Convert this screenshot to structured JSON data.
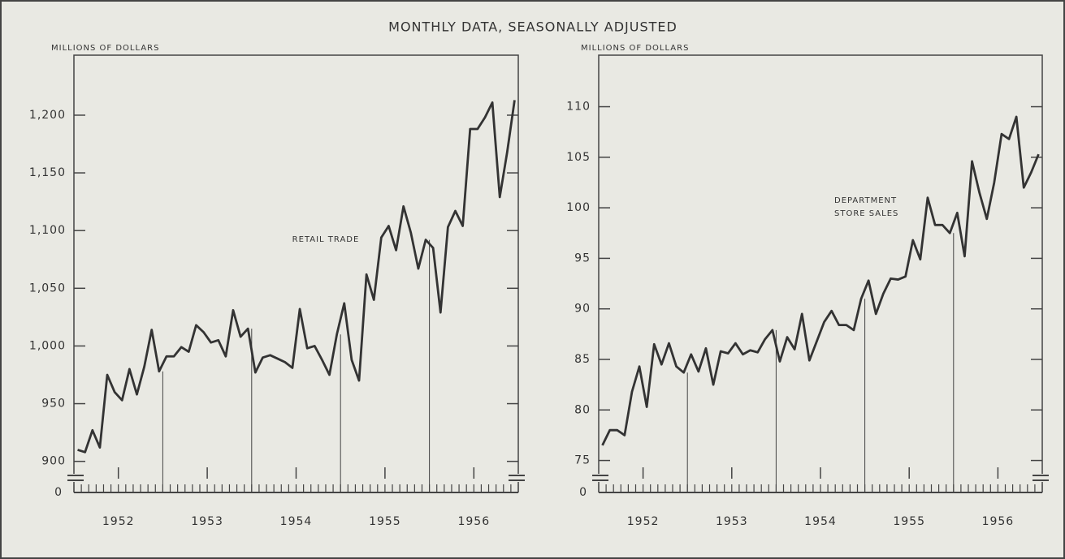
{
  "title": "MONTHLY DATA, SEASONALLY ADJUSTED",
  "chart_data": [
    {
      "type": "line",
      "ylabel": "MILLIONS OF DOLLARS",
      "annotation": [
        "RETAIL TRADE"
      ],
      "years": [
        "1952",
        "1953",
        "1954",
        "1955",
        "1956"
      ],
      "color": "#333333",
      "values": [
        910,
        908,
        927,
        912,
        975,
        960,
        953,
        980,
        958,
        982,
        1014,
        978,
        991,
        991,
        999,
        995,
        1018,
        1012,
        1003,
        1005,
        991,
        1031,
        1008,
        1015,
        977,
        990,
        992,
        989,
        986,
        981,
        1032,
        998,
        1000,
        988,
        975,
        1010,
        1037,
        988,
        970,
        1062,
        1040,
        1094,
        1104,
        1083,
        1121,
        1098,
        1067,
        1092,
        1085,
        1029,
        1103,
        1117,
        1104,
        1188,
        1188,
        1198,
        1211,
        1129,
        1168,
        1213
      ],
      "ylim": [
        885,
        1252
      ],
      "yticks": [
        900,
        950,
        {
          "value": 1000,
          "label": "1,000"
        },
        {
          "value": 1050,
          "label": "1,050"
        },
        {
          "value": 1100,
          "label": "1,100"
        },
        {
          "value": 1150,
          "label": "1,150"
        },
        {
          "value": 1200,
          "label": "1,200"
        }
      ],
      "break_tick": 0
    },
    {
      "type": "line",
      "ylabel": "MILLIONS OF DOLLARS",
      "annotation": [
        "DEPARTMENT",
        "STORE SALES"
      ],
      "years": [
        "1952",
        "1953",
        "1954",
        "1955",
        "1956"
      ],
      "color": "#333333",
      "values": [
        76.5,
        78,
        78,
        77.5,
        81.8,
        84.3,
        80.3,
        86.5,
        84.5,
        86.6,
        84.3,
        83.7,
        85.5,
        83.8,
        86.1,
        82.5,
        85.8,
        85.6,
        86.6,
        85.5,
        85.9,
        85.7,
        87,
        87.9,
        84.8,
        87.2,
        86,
        89.5,
        84.9,
        86.8,
        88.7,
        89.8,
        88.4,
        88.4,
        87.9,
        91,
        92.8,
        89.5,
        91.5,
        93,
        92.9,
        93.2,
        96.8,
        94.9,
        101,
        98.3,
        98.3,
        97.5,
        99.5,
        95.2,
        104.6,
        101.5,
        98.9,
        102.5,
        107.3,
        106.8,
        109,
        102,
        103.5,
        105.3
      ],
      "ylim": [
        73.2,
        115.1
      ],
      "yticks": [
        75,
        80,
        85,
        90,
        95,
        100,
        105,
        110
      ],
      "break_tick": 0
    }
  ]
}
